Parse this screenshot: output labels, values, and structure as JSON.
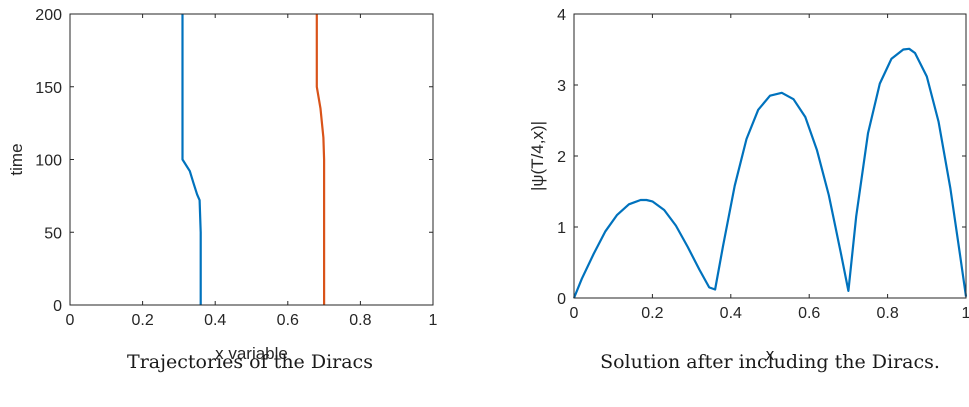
{
  "chart_data": [
    {
      "type": "line",
      "title": "",
      "xlabel": "x variable",
      "ylabel": "time",
      "xlim": [
        0,
        1
      ],
      "ylim": [
        0,
        200
      ],
      "xticks": [
        0,
        0.2,
        0.4,
        0.6,
        0.8,
        1
      ],
      "xtick_labels": [
        "0",
        "0.2",
        "0.4",
        "0.6",
        "0.8",
        "1"
      ],
      "yticks": [
        0,
        50,
        100,
        150,
        200
      ],
      "ytick_labels": [
        "0",
        "50",
        "100",
        "150",
        "200"
      ],
      "grid": false,
      "caption": "Trajectories of the Diracs",
      "series": [
        {
          "color": "#0072BD",
          "x": [
            0.36,
            0.36,
            0.357,
            0.35,
            0.34,
            0.33,
            0.31,
            0.31,
            0.31
          ],
          "y": [
            0,
            50,
            72,
            76,
            84,
            92,
            100,
            150,
            200
          ]
        },
        {
          "color": "#D95319",
          "x": [
            0.7,
            0.7,
            0.698,
            0.69,
            0.68,
            0.68,
            0.68
          ],
          "y": [
            0,
            100,
            115,
            135,
            150,
            175,
            200
          ]
        }
      ]
    },
    {
      "type": "line",
      "title": "",
      "xlabel": "x",
      "ylabel": "|ψ(T/4,x)|",
      "xlim": [
        0,
        1
      ],
      "ylim": [
        0,
        4
      ],
      "xticks": [
        0,
        0.2,
        0.4,
        0.6,
        0.8,
        1
      ],
      "xtick_labels": [
        "0",
        "0.2",
        "0.4",
        "0.6",
        "0.8",
        "1"
      ],
      "yticks": [
        0,
        1,
        2,
        3,
        4
      ],
      "ytick_labels": [
        "0",
        "1",
        "2",
        "3",
        "4"
      ],
      "grid": false,
      "caption": "Solution after including the Diracs.",
      "series": [
        {
          "color": "#0072BD",
          "x": [
            0,
            0.02,
            0.05,
            0.08,
            0.11,
            0.14,
            0.17,
            0.185,
            0.2,
            0.23,
            0.26,
            0.29,
            0.32,
            0.345,
            0.36,
            0.38,
            0.41,
            0.44,
            0.47,
            0.5,
            0.53,
            0.56,
            0.59,
            0.62,
            0.65,
            0.68,
            0.7,
            0.72,
            0.75,
            0.78,
            0.81,
            0.84,
            0.855,
            0.87,
            0.9,
            0.93,
            0.96,
            0.985,
            1.0
          ],
          "y": [
            0,
            0.27,
            0.62,
            0.94,
            1.17,
            1.32,
            1.38,
            1.38,
            1.36,
            1.24,
            1.02,
            0.72,
            0.4,
            0.15,
            0.12,
            0.73,
            1.58,
            2.24,
            2.65,
            2.85,
            2.89,
            2.8,
            2.55,
            2.08,
            1.45,
            0.65,
            0.1,
            1.15,
            2.32,
            3.02,
            3.37,
            3.5,
            3.51,
            3.45,
            3.12,
            2.48,
            1.55,
            0.6,
            0.02
          ]
        }
      ]
    }
  ]
}
